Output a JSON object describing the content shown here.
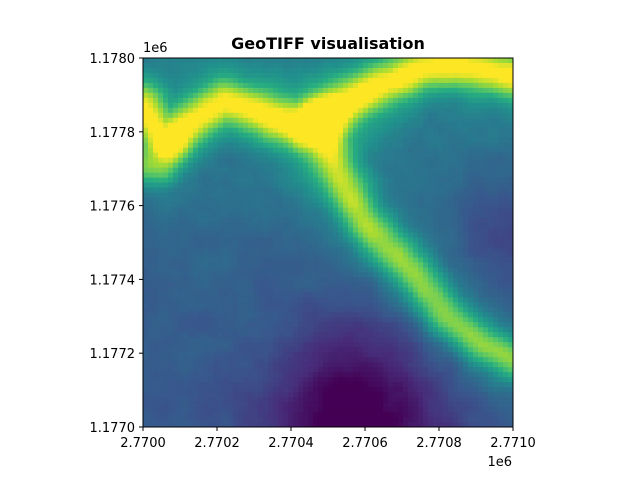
{
  "chart_data": {
    "type": "heatmap",
    "title": "GeoTIFF visualisation",
    "colormap": "viridis",
    "x_offset_label": "1e6",
    "y_offset_label": "1e6",
    "xlim": [
      2.77,
      2.771
    ],
    "ylim": [
      1.177,
      1.178
    ],
    "x_ticks": [
      "2.7700",
      "2.7702",
      "2.7704",
      "2.7706",
      "2.7708",
      "2.7710"
    ],
    "y_ticks": [
      "1.1770",
      "1.1772",
      "1.1774",
      "1.1776",
      "1.1778",
      "1.1780"
    ],
    "grid": false,
    "colorbar": false,
    "legend": false
  }
}
